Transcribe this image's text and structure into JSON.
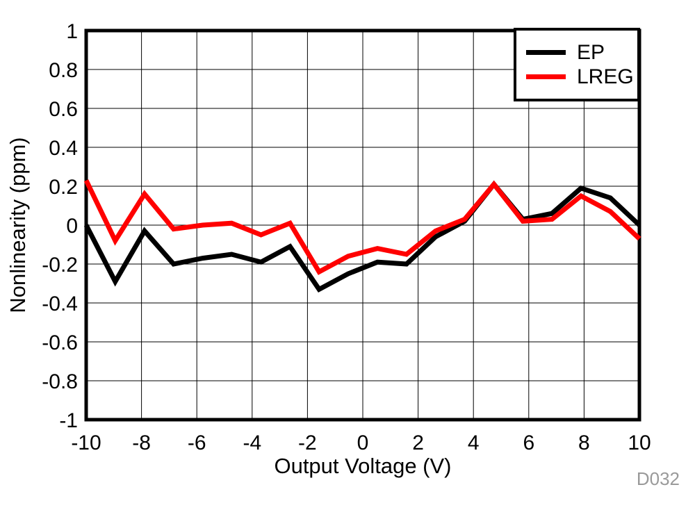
{
  "chart_data": {
    "type": "line",
    "title": "",
    "xlabel": "Output Voltage (V)",
    "ylabel": "Nonlinearity (ppm)",
    "watermark": "D032",
    "xlim": [
      -10,
      10
    ],
    "ylim": [
      -1,
      1
    ],
    "xticks": [
      -10,
      -8,
      -6,
      -4,
      -2,
      0,
      2,
      4,
      6,
      8,
      10
    ],
    "yticks": [
      1,
      0.8,
      0.6,
      0.4,
      0.2,
      0,
      -0.2,
      -0.4,
      -0.6,
      -0.8,
      -1
    ],
    "grid": true,
    "legend_position": "top-right",
    "x": [
      -10,
      -8.95,
      -7.89,
      -6.84,
      -5.79,
      -4.74,
      -3.68,
      -2.63,
      -1.58,
      -0.53,
      0.53,
      1.58,
      2.63,
      3.68,
      4.74,
      5.79,
      6.84,
      7.89,
      8.95,
      10
    ],
    "series": [
      {
        "name": "EP",
        "color": "#000000",
        "values": [
          0,
          -0.29,
          -0.03,
          -0.2,
          -0.17,
          -0.15,
          -0.19,
          -0.11,
          -0.33,
          -0.25,
          -0.19,
          -0.2,
          -0.06,
          0.02,
          0.21,
          0.03,
          0.06,
          0.19,
          0.14,
          0
        ]
      },
      {
        "name": "LREG",
        "color": "#ff0000",
        "values": [
          0.23,
          -0.08,
          0.16,
          -0.02,
          0,
          0.01,
          -0.05,
          0.01,
          -0.24,
          -0.16,
          -0.12,
          -0.15,
          -0.03,
          0.03,
          0.21,
          0.02,
          0.03,
          0.15,
          0.07,
          -0.07
        ]
      }
    ],
    "styles": {
      "grid_color": "#000000",
      "frame_color": "#000000",
      "watermark_color": "#9a9a9a"
    }
  }
}
